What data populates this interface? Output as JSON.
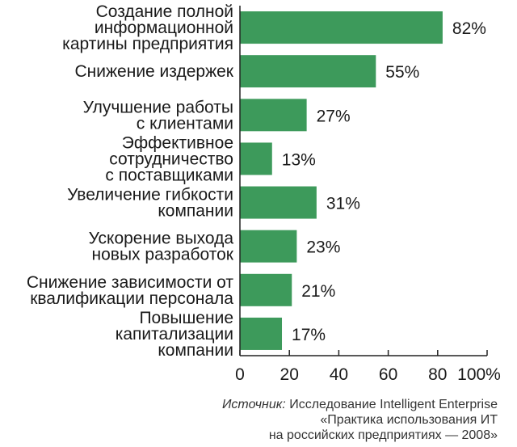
{
  "chart_data": {
    "type": "bar",
    "orientation": "horizontal",
    "categories": [
      [
        "Создание полной",
        "информационной",
        "картины предприятия"
      ],
      [
        "Снижение издержек"
      ],
      [
        "Улучшение работы",
        "с клиентами"
      ],
      [
        "Эффективное",
        "сотрудничество",
        "с поставщиками"
      ],
      [
        "Увеличение гибкости",
        "компании"
      ],
      [
        "Ускорение выхода",
        "новых разработок"
      ],
      [
        "Снижение зависимости от",
        "квалификации персонала"
      ],
      [
        "Повышение",
        "капитализации",
        "компании"
      ]
    ],
    "values": [
      82,
      55,
      27,
      13,
      31,
      23,
      21,
      17
    ],
    "value_labels": [
      "82%",
      "55%",
      "27%",
      "13%",
      "31%",
      "23%",
      "21%",
      "17%"
    ],
    "xlim": [
      0,
      100
    ],
    "ticks": [
      0,
      20,
      40,
      60,
      80,
      100
    ],
    "tick_labels": [
      "0",
      "20",
      "40",
      "60",
      "80",
      "100%"
    ],
    "grid": false,
    "bar_color": "#3d9a5b",
    "axis_color": "#222222"
  },
  "source": {
    "prefix": "Источник:",
    "line1": "Исследование Intelligent Enterprise",
    "line2": "«Практика использования ИТ",
    "line3": "на российских предприятиях — 2008»"
  }
}
